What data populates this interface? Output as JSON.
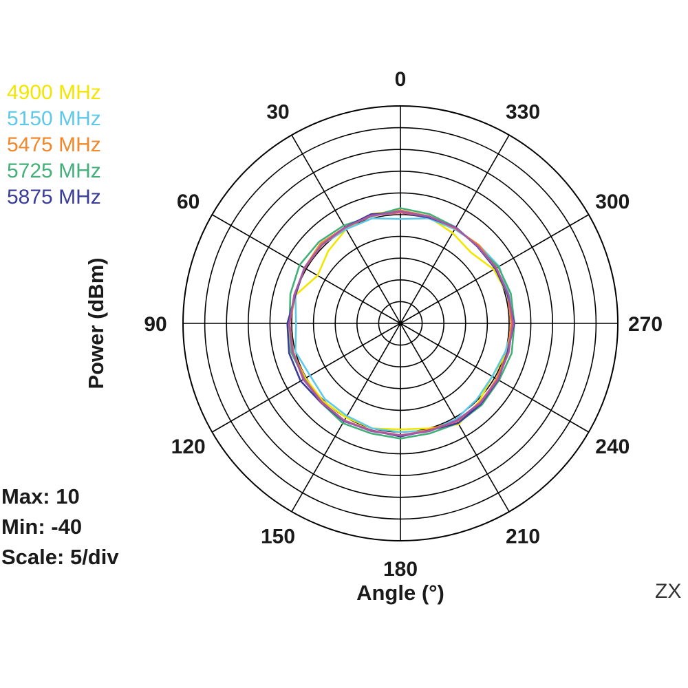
{
  "chart_data": {
    "type": "polar-line",
    "xlabel": "Angle  (°)",
    "ylabel": "Power  (dBm)",
    "plane": "ZX",
    "max_label": "Max: 10",
    "min_label": "Min: -40",
    "scale_label": "Scale: 5/div",
    "r_range": [
      -40,
      10
    ],
    "r_step": 5,
    "grid": true,
    "angle_direction": "counterclockwise",
    "angle_ticks": [
      "0",
      "30",
      "60",
      "90",
      "120",
      "150",
      "180",
      "210",
      "240",
      "270",
      "300",
      "330"
    ],
    "angles": [
      0,
      15,
      30,
      45,
      60,
      75,
      90,
      105,
      120,
      135,
      150,
      165,
      180,
      195,
      210,
      225,
      240,
      255,
      270,
      285,
      300,
      315,
      330,
      345
    ],
    "series": [
      {
        "name": "4900 MHz",
        "color": "#f2e600",
        "values": [
          -14.0,
          -14.0,
          -15.0,
          -16.5,
          -18.0,
          -15.0,
          -14.0,
          -14.3,
          -14.8,
          -14.8,
          -15.0,
          -15.0,
          -15.6,
          -15.0,
          -13.2,
          -14.5,
          -15.6,
          -14.5,
          -14.3,
          -14.5,
          -15.2,
          -17.0,
          -16.0,
          -14.7
        ]
      },
      {
        "name": "5150 MHz",
        "color": "#5ec8e8",
        "values": [
          -16.0,
          -15.0,
          -15.0,
          -14.5,
          -14.5,
          -15.0,
          -16.0,
          -15.0,
          -16.0,
          -15.4,
          -15.4,
          -15.0,
          -15.0,
          -14.5,
          -14.5,
          -15.2,
          -15.6,
          -15.0,
          -14.0,
          -14.2,
          -13.8,
          -14.5,
          -15.0,
          -15.0
        ]
      },
      {
        "name": "5475 MHz",
        "color": "#f0892b",
        "values": [
          -14.0,
          -14.5,
          -14.5,
          -14.0,
          -14.5,
          -15.0,
          -14.5,
          -14.5,
          -14.5,
          -14.5,
          -14.2,
          -14.5,
          -14.0,
          -14.7,
          -14.0,
          -13.8,
          -14.5,
          -14.5,
          -14.5,
          -14.5,
          -14.5,
          -14.5,
          -14.8,
          -14.5
        ]
      },
      {
        "name": "5725 MHz",
        "color": "#43b07a",
        "values": [
          -13.5,
          -14.5,
          -14.0,
          -13.5,
          -13.2,
          -13.8,
          -14.5,
          -14.0,
          -14.5,
          -14.2,
          -13.5,
          -13.8,
          -13.5,
          -13.8,
          -13.5,
          -13.5,
          -13.8,
          -13.5,
          -13.8,
          -13.7,
          -14.0,
          -15.0,
          -14.5,
          -14.0
        ]
      },
      {
        "name": "5875 MHz",
        "color": "#3a3d98",
        "values": [
          -14.5,
          -14.0,
          -14.5,
          -14.5,
          -14.5,
          -15.0,
          -14.0,
          -13.5,
          -13.5,
          -14.2,
          -14.0,
          -14.5,
          -14.0,
          -14.5,
          -13.5,
          -13.8,
          -14.0,
          -14.5,
          -13.8,
          -14.5,
          -14.8,
          -15.0,
          -14.5,
          -14.8
        ]
      },
      {
        "name": "",
        "color": "#e85a70",
        "values": [
          -14.5,
          -14.3,
          -14.6,
          -14.5,
          -14.6,
          -14.7,
          -14.5,
          -14.3,
          -14.4,
          -14.3,
          -14.2,
          -14.4,
          -14.3,
          -14.4,
          -14.0,
          -14.2,
          -14.2,
          -14.2,
          -14.2,
          -14.3,
          -14.5,
          -14.8,
          -14.7,
          -14.5
        ]
      },
      {
        "name": "",
        "color": "#a05aa8",
        "values": [
          -14.2,
          -14.4,
          -14.5,
          -14.4,
          -14.5,
          -14.8,
          -14.4,
          -14.4,
          -14.2,
          -14.4,
          -14.1,
          -14.3,
          -14.2,
          -14.3,
          -14.2,
          -14.0,
          -14.1,
          -14.3,
          -14.0,
          -14.3,
          -14.6,
          -14.9,
          -14.6,
          -14.6
        ]
      }
    ]
  }
}
